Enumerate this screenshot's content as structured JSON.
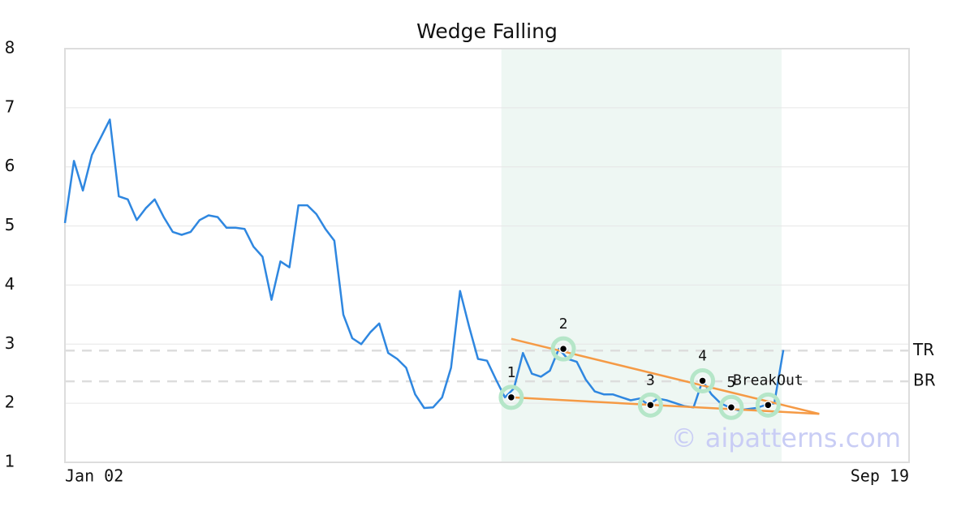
{
  "chart_data": {
    "type": "line",
    "title": "Wedge Falling",
    "categories": [
      "Jan 02",
      null,
      null,
      null,
      null,
      null,
      null,
      null,
      null,
      null,
      null,
      null,
      null,
      null,
      null,
      null,
      null,
      null,
      null,
      null,
      null,
      null,
      null,
      null,
      null,
      null,
      null,
      null,
      null,
      null,
      null,
      null,
      null,
      null,
      null,
      null,
      null,
      null,
      null,
      null,
      null,
      null,
      null,
      null,
      null,
      null,
      null,
      null,
      null,
      null,
      null,
      null,
      null,
      null,
      null,
      null,
      null,
      null,
      null,
      null,
      null,
      null,
      null,
      null,
      null,
      null,
      null,
      null,
      null,
      null,
      null,
      null,
      null,
      null,
      null,
      null,
      null,
      null,
      null,
      null,
      null,
      null,
      null,
      null,
      null,
      null,
      null,
      null,
      null,
      null,
      null,
      null,
      null,
      null,
      "Sep 19"
    ],
    "series": [
      {
        "color": "#2f87e0",
        "values": [
          5.05,
          6.1,
          5.6,
          6.2,
          6.5,
          6.8,
          5.5,
          5.45,
          5.1,
          5.3,
          5.45,
          5.15,
          4.9,
          4.85,
          4.9,
          5.1,
          5.18,
          5.15,
          4.97,
          4.97,
          4.95,
          4.65,
          4.48,
          3.75,
          4.4,
          4.3,
          5.35,
          5.35,
          5.2,
          4.95,
          4.75,
          3.5,
          3.1,
          3.0,
          3.2,
          3.35,
          2.85,
          2.75,
          2.6,
          2.15,
          1.92,
          1.93,
          2.1,
          2.6,
          3.9,
          3.3,
          2.75,
          2.72,
          2.4,
          2.1,
          2.25,
          2.85,
          2.5,
          2.45,
          2.55,
          2.92,
          2.75,
          2.7,
          2.4,
          2.2,
          2.15,
          2.15,
          2.1,
          2.05,
          2.08,
          1.97,
          2.08,
          2.05,
          2.0,
          1.95,
          1.93,
          2.38,
          2.15,
          2.0,
          1.93,
          1.88,
          1.9,
          1.92,
          1.97,
          2.0,
          2.9,
          null,
          null,
          null,
          null,
          null,
          null,
          null,
          null,
          null,
          null,
          null,
          null,
          null,
          null
        ]
      }
    ],
    "ylim": [
      1,
      8
    ],
    "yticks": [
      1,
      2,
      3,
      4,
      5,
      6,
      7,
      8
    ],
    "grid": true,
    "highlight": [
      48.6,
      79.8
    ],
    "levels": [
      {
        "label": "TR",
        "value": 2.89
      },
      {
        "label": "BR",
        "value": 2.37
      }
    ],
    "trendlines": [
      {
        "color": "#f59a45",
        "x": [
          49.7,
          84
        ],
        "y": [
          3.09,
          1.82
        ]
      },
      {
        "color": "#f59a45",
        "x": [
          49.7,
          84
        ],
        "y": [
          2.1,
          1.82
        ]
      }
    ],
    "annotations": [
      {
        "text": "1",
        "x": 49.7,
        "y": 2.1
      },
      {
        "text": "2",
        "x": 55.5,
        "y": 2.92
      },
      {
        "text": "3",
        "x": 65.2,
        "y": 1.97
      },
      {
        "text": "4",
        "x": 71,
        "y": 2.38
      },
      {
        "text": "5",
        "x": 74.2,
        "y": 1.93
      },
      {
        "text": "BreakOut",
        "x": 78.3,
        "y": 1.97
      }
    ],
    "watermark": "© aipatterns.com"
  }
}
